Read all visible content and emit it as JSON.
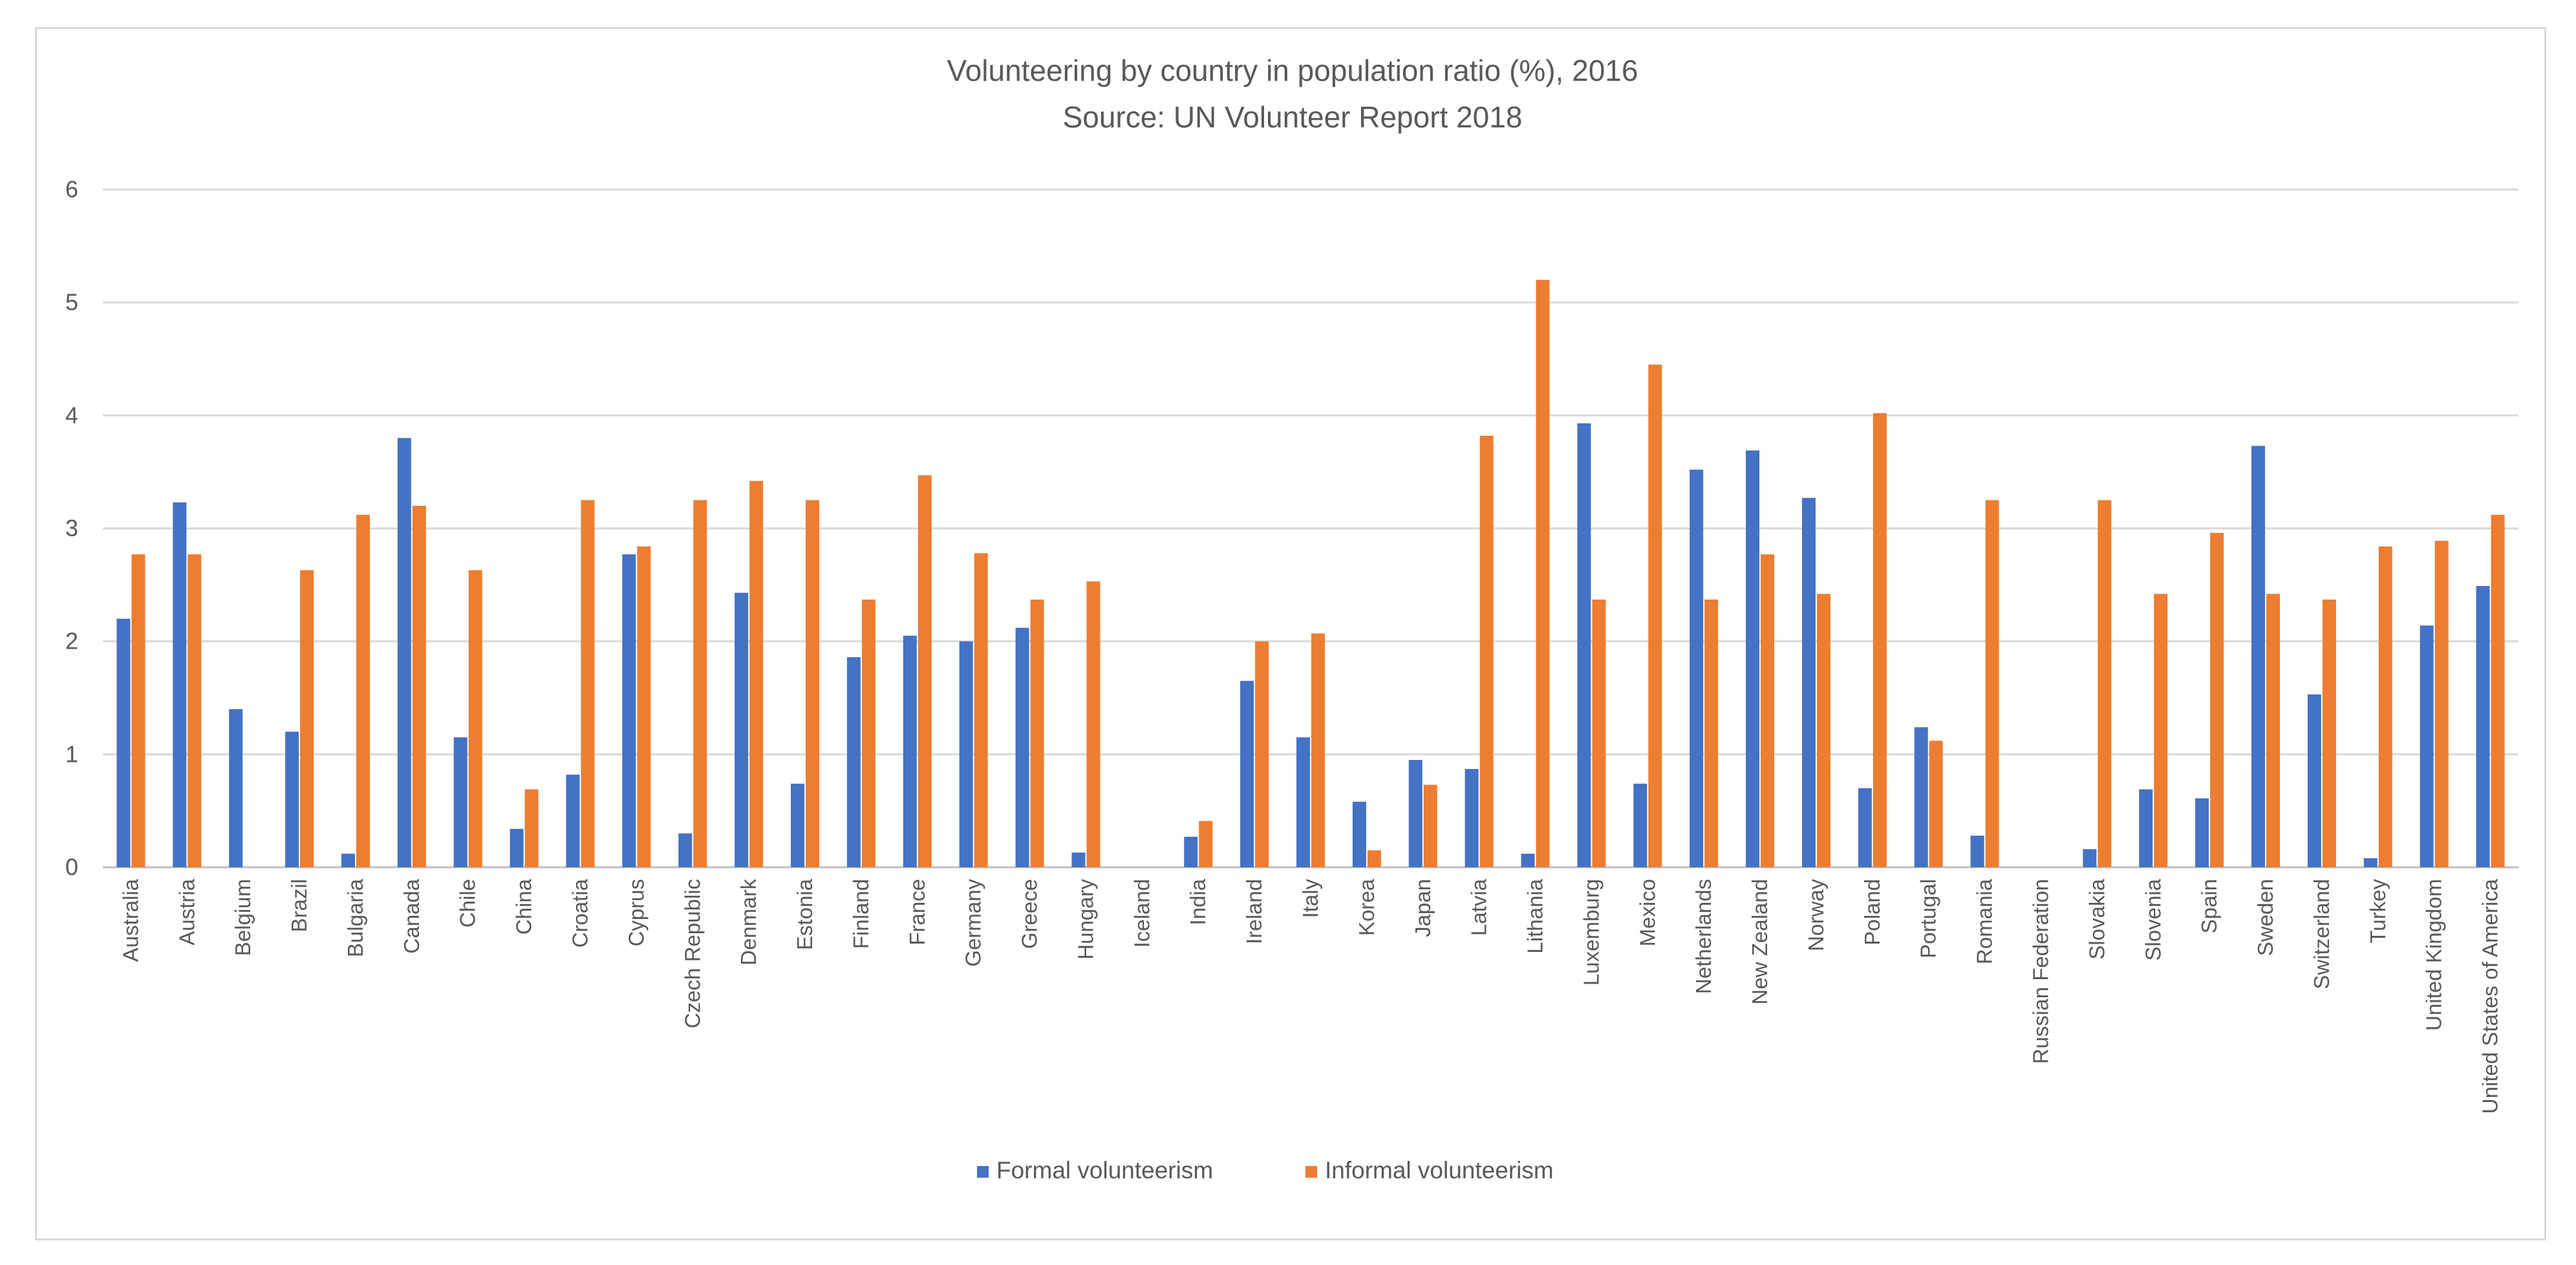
{
  "chart_data": {
    "type": "bar",
    "title": "Volunteering by country in population ratio (%), 2016",
    "subtitle": "Source: UN Volunteer Report 2018",
    "xlabel": "",
    "ylabel": "",
    "ylim": [
      0,
      6
    ],
    "yticks": [
      "0",
      "1",
      "2",
      "3",
      "4",
      "5",
      "6"
    ],
    "grid": true,
    "legend_position": "bottom",
    "categories": [
      "Australia",
      "Austria",
      "Belgium",
      "Brazil",
      "Bulgaria",
      "Canada",
      "Chile",
      "China",
      "Croatia",
      "Cyprus",
      "Czech Republic",
      "Denmark",
      "Estonia",
      "Finland",
      "France",
      "Germany",
      "Greece",
      "Hungary",
      "Iceland",
      "India",
      "Ireland",
      "Italy",
      "Korea",
      "Japan",
      "Latvia",
      "Lithania",
      "Luxemburg",
      "Mexico",
      "Netherlands",
      "New Zealand",
      "Norway",
      "Poland",
      "Portugal",
      "Romania",
      "Russian Federation",
      "Slovakia",
      "Slovenia",
      "Spain",
      "Sweden",
      "Switzerland",
      "Turkey",
      "United Kingdom",
      "United States of America"
    ],
    "series": [
      {
        "name": "Formal volunteerism",
        "color": "#4472C4",
        "values": [
          2.2,
          3.23,
          1.4,
          1.2,
          0.12,
          3.8,
          1.15,
          0.34,
          0.82,
          2.77,
          0.3,
          2.43,
          0.74,
          1.86,
          2.05,
          2.0,
          2.12,
          0.13,
          0,
          0.27,
          1.65,
          1.15,
          0.58,
          0.95,
          0.87,
          0.12,
          3.93,
          0.74,
          3.52,
          3.69,
          3.27,
          0.7,
          1.24,
          0.28,
          0,
          0.16,
          0.69,
          0.61,
          3.73,
          1.53,
          0.08,
          2.14,
          2.49
        ]
      },
      {
        "name": "Informal volunteerism",
        "color": "#ED7D31",
        "values": [
          2.77,
          2.77,
          0,
          2.63,
          3.12,
          3.2,
          2.63,
          0.69,
          3.25,
          2.84,
          3.25,
          3.42,
          3.25,
          2.37,
          3.47,
          2.78,
          2.37,
          2.53,
          0,
          0.41,
          2.0,
          2.07,
          0.15,
          0.73,
          3.82,
          5.2,
          2.37,
          4.45,
          2.37,
          2.77,
          2.42,
          4.02,
          1.12,
          3.25,
          0,
          3.25,
          2.42,
          2.96,
          2.42,
          2.37,
          2.84,
          2.89,
          3.12
        ]
      }
    ]
  }
}
